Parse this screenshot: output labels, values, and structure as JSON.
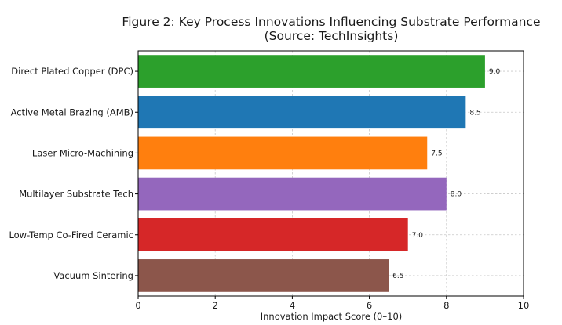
{
  "chart_data": {
    "type": "bar",
    "orientation": "horizontal",
    "title": "Figure 2: Key Process Innovations Influencing Substrate Performance",
    "subtitle": "(Source: TechInsights)",
    "xlabel": "Innovation Impact Score (0–10)",
    "ylabel": "",
    "xlim": [
      0,
      10
    ],
    "xticks": [
      0,
      2,
      4,
      6,
      8,
      10
    ],
    "grid": true,
    "categories": [
      "Direct Plated Copper (DPC)",
      "Active Metal Brazing (AMB)",
      "Laser Micro-Machining",
      "Multilayer Substrate Tech",
      "Low-Temp Co-Fired Ceramic",
      "Vacuum Sintering"
    ],
    "values": [
      9.0,
      8.5,
      7.5,
      8.0,
      7.0,
      6.5
    ],
    "value_labels": [
      "9.0",
      "8.5",
      "7.5",
      "8.0",
      "7.0",
      "6.5"
    ],
    "colors": [
      "#2ca02c",
      "#1f77b4",
      "#ff7f0e",
      "#9467bd",
      "#d62728",
      "#8c564b"
    ]
  }
}
